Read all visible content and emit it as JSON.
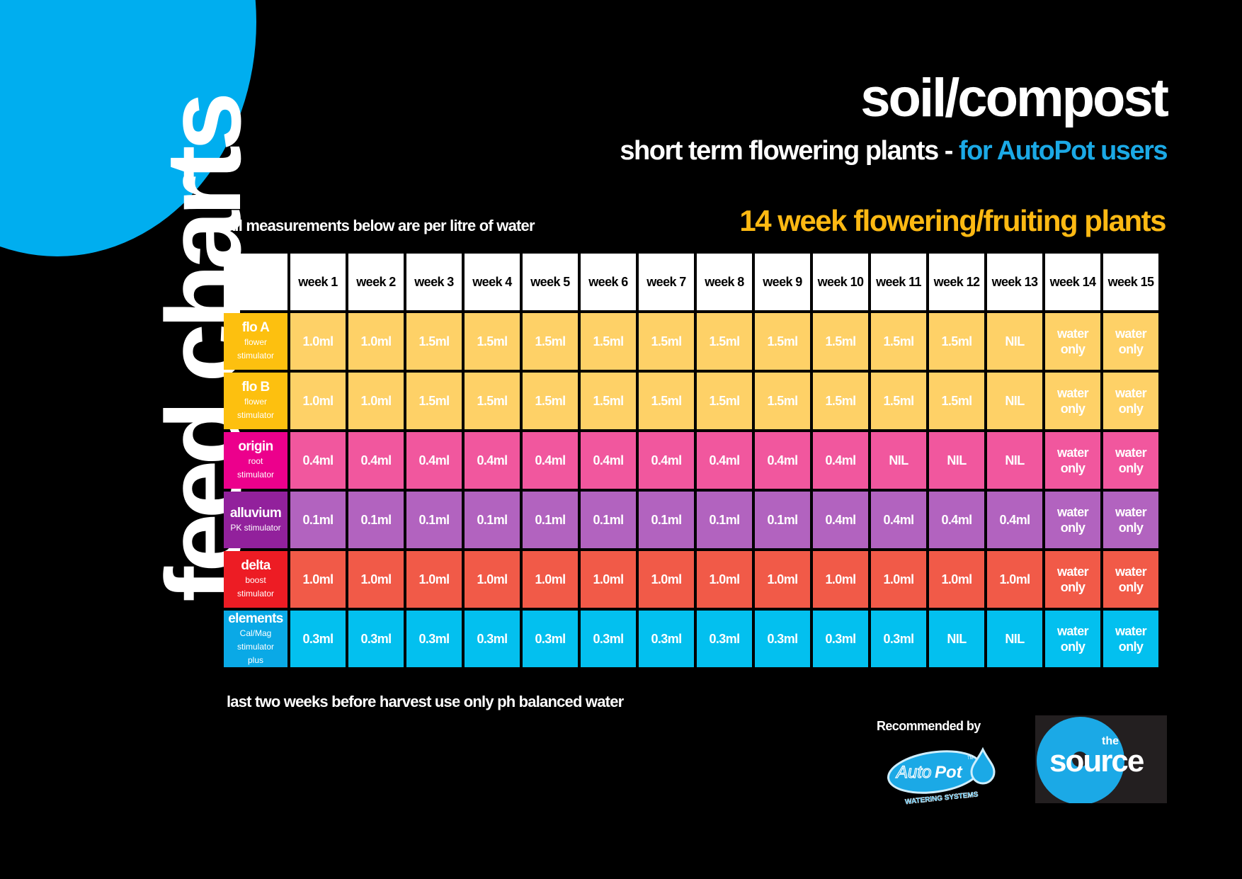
{
  "header": {
    "vertical_title": "feed charts",
    "title": "soil/compost",
    "subtitle_main": "short term flowering plants - ",
    "subtitle_accent": "for AutoPot users",
    "measurement_note": "all measurements below are per litre of water",
    "plant_heading": "14 week flowering/fruiting plants"
  },
  "footer": {
    "note": "last two weeks before harvest use only ph balanced water",
    "recommended_by": "Recommended by",
    "autopot_logo": {
      "brand": "AutoPot",
      "tagline": "WATERING SYSTEMS",
      "tm": "TM"
    },
    "source_logo": {
      "small": "the",
      "word": "source"
    }
  },
  "colors": {
    "background": "#000000",
    "accent_blue": "#00aeef",
    "heading_yellow": "#fdb913",
    "header_cell": "#ffffff"
  },
  "chart_data": {
    "type": "table",
    "title": "soil/compost - 14 week flowering/fruiting plants",
    "columns": [
      "week 1",
      "week 2",
      "week 3",
      "week 4",
      "week 5",
      "week 6",
      "week 7",
      "week 8",
      "week 9",
      "week 10",
      "week 11",
      "week 12",
      "week 13",
      "week 14",
      "week 15"
    ],
    "rows": [
      {
        "name": "flo A",
        "sub1": "flower",
        "sub2": "stimulator",
        "label_color": "#fdc00f",
        "cell_color": "#fed167",
        "values": [
          "1.0ml",
          "1.0ml",
          "1.5ml",
          "1.5ml",
          "1.5ml",
          "1.5ml",
          "1.5ml",
          "1.5ml",
          "1.5ml",
          "1.5ml",
          "1.5ml",
          "1.5ml",
          "NIL",
          "water only",
          "water only"
        ]
      },
      {
        "name": "flo B",
        "sub1": "flower",
        "sub2": "stimulator",
        "label_color": "#fdc00f",
        "cell_color": "#fed167",
        "values": [
          "1.0ml",
          "1.0ml",
          "1.5ml",
          "1.5ml",
          "1.5ml",
          "1.5ml",
          "1.5ml",
          "1.5ml",
          "1.5ml",
          "1.5ml",
          "1.5ml",
          "1.5ml",
          "NIL",
          "water only",
          "water only"
        ]
      },
      {
        "name": "origin",
        "sub1": "root",
        "sub2": "stimulator",
        "label_color": "#ec008c",
        "cell_color": "#f1579e",
        "values": [
          "0.4ml",
          "0.4ml",
          "0.4ml",
          "0.4ml",
          "0.4ml",
          "0.4ml",
          "0.4ml",
          "0.4ml",
          "0.4ml",
          "0.4ml",
          "NIL",
          "NIL",
          "NIL",
          "water only",
          "water only"
        ]
      },
      {
        "name": "alluvium",
        "sub1": "PK stimulator",
        "sub2": "",
        "label_color": "#92219c",
        "cell_color": "#b263bf",
        "values": [
          "0.1ml",
          "0.1ml",
          "0.1ml",
          "0.1ml",
          "0.1ml",
          "0.1ml",
          "0.1ml",
          "0.1ml",
          "0.1ml",
          "0.4ml",
          "0.4ml",
          "0.4ml",
          "0.4ml",
          "water only",
          "water only"
        ]
      },
      {
        "name": "delta",
        "sub1": "boost",
        "sub2": "stimulator",
        "label_color": "#ed1c24",
        "cell_color": "#f15a48",
        "values": [
          "1.0ml",
          "1.0ml",
          "1.0ml",
          "1.0ml",
          "1.0ml",
          "1.0ml",
          "1.0ml",
          "1.0ml",
          "1.0ml",
          "1.0ml",
          "1.0ml",
          "1.0ml",
          "1.0ml",
          "water only",
          "water only"
        ]
      },
      {
        "name": "elements",
        "sub1": "Cal/Mag",
        "sub2": "stimulator",
        "sub3": "plus",
        "label_color": "#0aa9e6",
        "cell_color": "#03c0ef",
        "values": [
          "0.3ml",
          "0.3ml",
          "0.3ml",
          "0.3ml",
          "0.3ml",
          "0.3ml",
          "0.3ml",
          "0.3ml",
          "0.3ml",
          "0.3ml",
          "0.3ml",
          "NIL",
          "NIL",
          "water only",
          "water only"
        ]
      }
    ],
    "units": "ml per litre of water"
  }
}
